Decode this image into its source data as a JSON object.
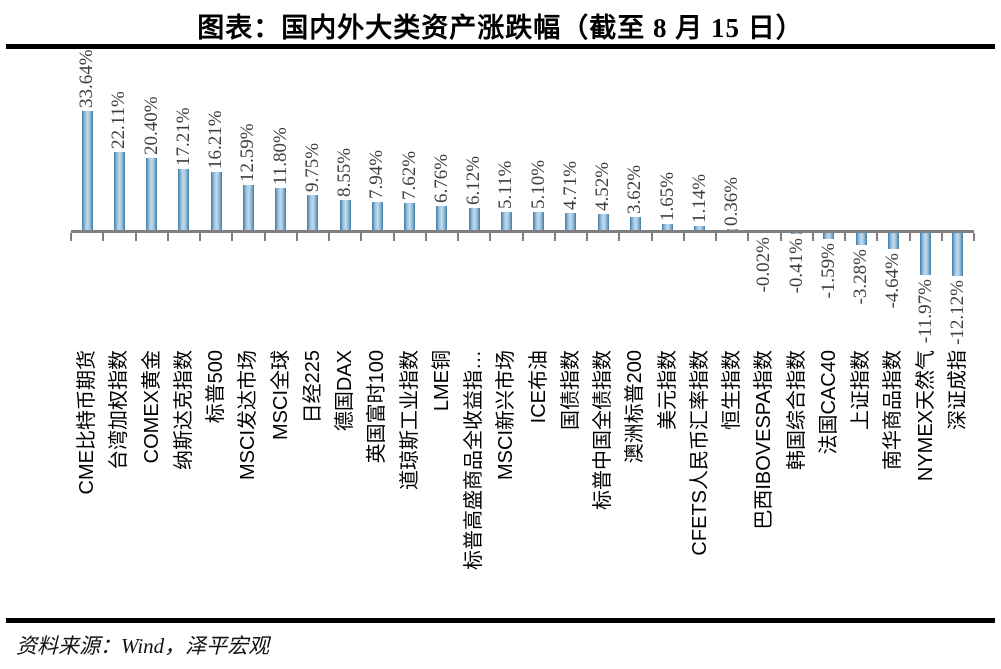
{
  "title": "图表：国内外大类资产涨跌幅（截至 8 月 15 日）",
  "source": "资料来源：Wind，泽平宏观",
  "chart_data": {
    "type": "bar",
    "title": "图表：国内外大类资产涨跌幅（截至 8 月 15 日）",
    "orientation": "vertical",
    "categories": [
      "CME比特币期货",
      "台湾加权指数",
      "COMEX黄金",
      "纳斯达克指数",
      "标普500",
      "MSCI发达市场",
      "MSCI全球",
      "日经225",
      "德国DAX",
      "英国富时100",
      "道琼斯工业指数",
      "LME铜",
      "标普高盛商品全收益指…",
      "MSCI新兴市场",
      "ICE布油",
      "国债指数",
      "标普中国全债指数",
      "澳洲标普200",
      "美元指数",
      "CFETS人民币汇率指数",
      "恒生指数",
      "巴西IBOVESPA指数",
      "韩国综合指数",
      "法国CAC40",
      "上证指数",
      "南华商品指数",
      "NYMEX天然气",
      "深证成指"
    ],
    "values": [
      33.64,
      22.11,
      20.4,
      17.21,
      16.21,
      12.59,
      11.8,
      9.75,
      8.55,
      7.94,
      7.62,
      6.76,
      6.12,
      5.11,
      5.1,
      4.71,
      4.52,
      3.62,
      1.65,
      1.14,
      0.36,
      -0.02,
      -0.41,
      -1.59,
      -3.28,
      -4.64,
      -11.97,
      -12.12
    ],
    "value_labels": [
      "33.64%",
      "22.11%",
      "20.40%",
      "17.21%",
      "16.21%",
      "12.59%",
      "11.80%",
      "9.75%",
      "8.55%",
      "7.94%",
      "7.62%",
      "6.76%",
      "6.12%",
      "5.11%",
      "5.10%",
      "4.71%",
      "4.52%",
      "3.62%",
      "1.65%",
      "1.14%",
      "0.36%",
      "-0.02%",
      "-0.41%",
      "-1.59%",
      "-3.28%",
      "-4.64%",
      "-11.97%",
      "-12.12%"
    ],
    "unit": "%",
    "ylim": [
      -13,
      35
    ],
    "grid": false,
    "legend": false,
    "label_rotation_degrees": 90,
    "bar_color_edge": "#41789f",
    "bar_color_center": "#c0daee",
    "axis_color": "#7f7f7f",
    "value_label_color": "#3f3f3f",
    "category_label_color": "#000000",
    "source": "资料来源：Wind，泽平宏观"
  }
}
